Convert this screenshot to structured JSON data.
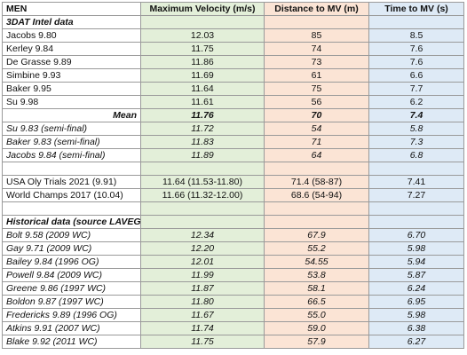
{
  "table": {
    "header": [
      "MEN",
      "Maximum Velocity (m/s)",
      "Distance to MV (m)",
      "Time to MV (s)"
    ],
    "rows": [
      {
        "style": "section",
        "cells": [
          "3DAT Intel data"
        ]
      },
      {
        "style": "normal",
        "cells": [
          "Jacobs 9.80",
          "12.03",
          "85",
          "8.5"
        ]
      },
      {
        "style": "normal",
        "cells": [
          "Kerley 9.84",
          "11.75",
          "74",
          "7.6"
        ]
      },
      {
        "style": "normal",
        "cells": [
          "De Grasse 9.89",
          "11.86",
          "73",
          "7.6"
        ]
      },
      {
        "style": "normal",
        "cells": [
          "Simbine 9.93",
          "11.69",
          "61",
          "6.6"
        ]
      },
      {
        "style": "normal",
        "cells": [
          "Baker 9.95",
          "11.64",
          "75",
          "7.7"
        ]
      },
      {
        "style": "normal",
        "cells": [
          "Su 9.98",
          "11.61",
          "56",
          "6.2"
        ]
      },
      {
        "style": "mean",
        "cells": [
          "Mean",
          "11.76",
          "70",
          "7.4"
        ]
      },
      {
        "style": "italic",
        "cells": [
          "Su 9.83 (semi-final)",
          "11.72",
          "54",
          "5.8"
        ]
      },
      {
        "style": "italic",
        "cells": [
          "Baker 9.83 (semi-final)",
          "11.83",
          "71",
          "7.3"
        ]
      },
      {
        "style": "italic",
        "cells": [
          "Jacobs 9.84 (semi-final)",
          "11.89",
          "64",
          "6.8"
        ]
      },
      {
        "style": "blank",
        "cells": []
      },
      {
        "style": "normal",
        "cells": [
          "USA Oly Trials 2021 (9.91)",
          "11.64 (11.53-11.80)",
          "71.4 (58-87)",
          "7.41"
        ]
      },
      {
        "style": "normal",
        "cells": [
          "World Champs 2017 (10.04)",
          "11.66 (11.32-12.00)",
          "68.6 (54-94)",
          "7.27"
        ]
      },
      {
        "style": "blank",
        "cells": []
      },
      {
        "style": "section",
        "cells": [
          "Historical data (source LAVEG)"
        ]
      },
      {
        "style": "italic",
        "cells": [
          "Bolt 9.58 (2009 WC)",
          "12.34",
          "67.9",
          "6.70"
        ]
      },
      {
        "style": "italic",
        "cells": [
          "Gay 9.71 (2009 WC)",
          "12.20",
          "55.2",
          "5.98"
        ]
      },
      {
        "style": "italic",
        "cells": [
          "Bailey 9.84 (1996 OG)",
          "12.01",
          "54.55",
          "5.94"
        ]
      },
      {
        "style": "italic",
        "cells": [
          "Powell 9.84 (2009 WC)",
          "11.99",
          "53.8",
          "5.87"
        ]
      },
      {
        "style": "italic",
        "cells": [
          "Greene 9.86 (1997 WC)",
          "11.87",
          "58.1",
          "6.24"
        ]
      },
      {
        "style": "italic",
        "cells": [
          "Boldon 9.87 (1997 WC)",
          "11.80",
          "66.5",
          "6.95"
        ]
      },
      {
        "style": "italic",
        "cells": [
          "Fredericks 9.89 (1996 OG)",
          "11.67",
          "55.0",
          "5.98"
        ]
      },
      {
        "style": "italic",
        "cells": [
          "Atkins 9.91 (2007 WC)",
          "11.74",
          "59.0",
          "6.38"
        ]
      },
      {
        "style": "italic",
        "cells": [
          "Blake 9.92 (2011 WC)",
          "11.75",
          "57.9",
          "6.27"
        ]
      }
    ]
  }
}
